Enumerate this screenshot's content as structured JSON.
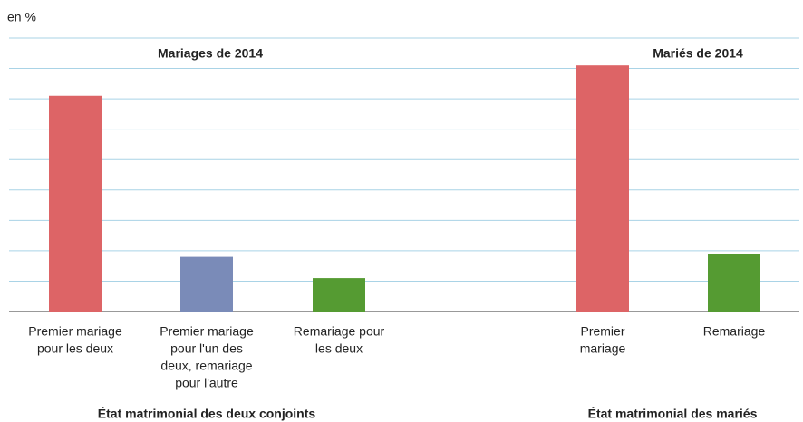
{
  "chart_data": {
    "type": "bar",
    "unit_label": "en %",
    "ylim": [
      0,
      90
    ],
    "yticks": [
      0,
      10,
      20,
      30,
      40,
      50,
      60,
      70,
      80,
      90
    ],
    "grid": true,
    "groups": [
      {
        "title": "Mariages de 2014",
        "axis_label": "État matrimonial des deux conjoints",
        "categories": [
          [
            "Premier mariage",
            "pour les deux"
          ],
          [
            "Premier mariage",
            "pour l'un des",
            "deux, remariage",
            "pour l'autre"
          ],
          [
            "Remariage pour",
            "les deux"
          ]
        ],
        "values": [
          71,
          18,
          11
        ],
        "colors": [
          "#dd6466",
          "#7a8bb8",
          "#559b32"
        ]
      },
      {
        "title": "Mariés de 2014",
        "axis_label": "État matrimonial des mariés",
        "categories": [
          [
            "Premier",
            "mariage"
          ],
          [
            "Remariage"
          ]
        ],
        "values": [
          81,
          19
        ],
        "colors": [
          "#dd6466",
          "#559b32"
        ]
      }
    ]
  }
}
